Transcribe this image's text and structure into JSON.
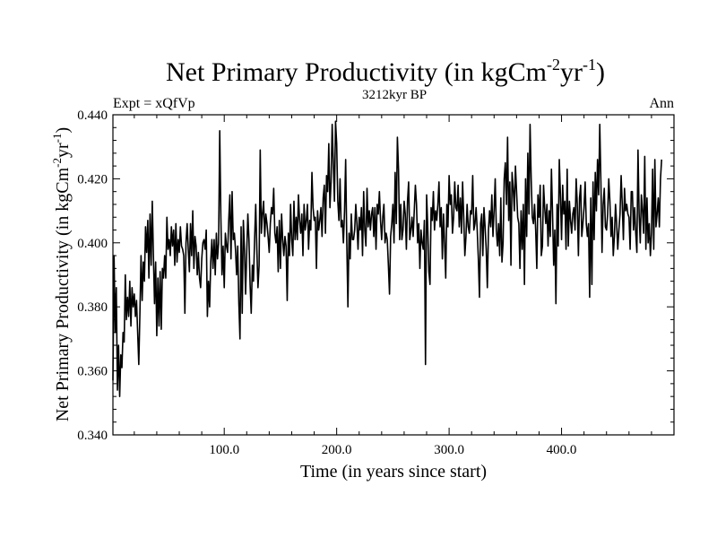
{
  "chart_data": {
    "type": "line",
    "title": {
      "main": "Net Primary Productivity (in kgCm",
      "sup1": "-2",
      "mid": "yr",
      "sup2": "-1",
      "end": ")"
    },
    "subtitle_left": "Expt = xQfVp",
    "subtitle_center": "3212kyr BP",
    "subtitle_right": "Ann",
    "xlabel": "Time (in years since start)",
    "ylabel": {
      "main": "Net Primary Productivity (in kgCm",
      "sup1": "-2",
      "mid": "yr",
      "sup2": "-1",
      "end": ")"
    },
    "xlim": [
      1,
      500
    ],
    "ylim": [
      0.34,
      0.44
    ],
    "x_ticks": [
      100,
      200,
      300,
      400
    ],
    "x_tick_labels": [
      "100.0",
      "200.0",
      "300.0",
      "400.0"
    ],
    "y_ticks": [
      0.34,
      0.36,
      0.38,
      0.4,
      0.42,
      0.44
    ],
    "y_tick_labels": [
      "0.340",
      "0.360",
      "0.380",
      "0.400",
      "0.420",
      "0.440"
    ],
    "grid": false,
    "line_color": "#000000",
    "series": [
      {
        "x_start": 1,
        "x_step": 1,
        "values": [
          0.357,
          0.396,
          0.372,
          0.386,
          0.354,
          0.368,
          0.352,
          0.365,
          0.361,
          0.372,
          0.369,
          0.39,
          0.376,
          0.383,
          0.377,
          0.388,
          0.374,
          0.386,
          0.38,
          0.384,
          0.377,
          0.382,
          0.372,
          0.362,
          0.378,
          0.396,
          0.382,
          0.394,
          0.388,
          0.405,
          0.397,
          0.407,
          0.389,
          0.409,
          0.393,
          0.413,
          0.396,
          0.381,
          0.394,
          0.371,
          0.389,
          0.374,
          0.391,
          0.373,
          0.392,
          0.389,
          0.396,
          0.389,
          0.408,
          0.398,
          0.401,
          0.396,
          0.405,
          0.399,
          0.404,
          0.393,
          0.406,
          0.394,
          0.401,
          0.397,
          0.405,
          0.399,
          0.398,
          0.396,
          0.378,
          0.4,
          0.406,
          0.398,
          0.391,
          0.406,
          0.396,
          0.41,
          0.392,
          0.402,
          0.399,
          0.39,
          0.397,
          0.389,
          0.386,
          0.395,
          0.4,
          0.401,
          0.398,
          0.404,
          0.377,
          0.388,
          0.38,
          0.394,
          0.401,
          0.392,
          0.401,
          0.39,
          0.403,
          0.395,
          0.4,
          0.435,
          0.408,
          0.39,
          0.399,
          0.386,
          0.403,
          0.399,
          0.397,
          0.407,
          0.415,
          0.395,
          0.416,
          0.401,
          0.403,
          0.398,
          0.39,
          0.399,
          0.381,
          0.37,
          0.405,
          0.378,
          0.407,
          0.398,
          0.384,
          0.397,
          0.409,
          0.401,
          0.387,
          0.378,
          0.393,
          0.388,
          0.401,
          0.412,
          0.398,
          0.386,
          0.393,
          0.429,
          0.403,
          0.409,
          0.413,
          0.402,
          0.409,
          0.406,
          0.402,
          0.397,
          0.406,
          0.411,
          0.409,
          0.417,
          0.403,
          0.4,
          0.405,
          0.391,
          0.407,
          0.392,
          0.409,
          0.401,
          0.396,
          0.402,
          0.399,
          0.382,
          0.403,
          0.396,
          0.412,
          0.401,
          0.396,
          0.413,
          0.401,
          0.408,
          0.401,
          0.415,
          0.407,
          0.403,
          0.409,
          0.396,
          0.412,
          0.404,
          0.407,
          0.412,
          0.398,
          0.407,
          0.404,
          0.422,
          0.411,
          0.407,
          0.408,
          0.392,
          0.41,
          0.404,
          0.407,
          0.411,
          0.402,
          0.414,
          0.418,
          0.403,
          0.421,
          0.416,
          0.431,
          0.411,
          0.419,
          0.437,
          0.425,
          0.413,
          0.438,
          0.431,
          0.413,
          0.407,
          0.42,
          0.405,
          0.407,
          0.4,
          0.41,
          0.426,
          0.4,
          0.38,
          0.403,
          0.395,
          0.409,
          0.401,
          0.401,
          0.404,
          0.412,
          0.406,
          0.398,
          0.408,
          0.404,
          0.411,
          0.396,
          0.416,
          0.404,
          0.399,
          0.417,
          0.405,
          0.41,
          0.404,
          0.409,
          0.411,
          0.402,
          0.411,
          0.398,
          0.412,
          0.409,
          0.416,
          0.407,
          0.401,
          0.408,
          0.412,
          0.4,
          0.403,
          0.401,
          0.393,
          0.384,
          0.402,
          0.406,
          0.412,
          0.4,
          0.422,
          0.406,
          0.433,
          0.423,
          0.401,
          0.412,
          0.401,
          0.404,
          0.413,
          0.409,
          0.398,
          0.413,
          0.419,
          0.401,
          0.404,
          0.408,
          0.402,
          0.41,
          0.418,
          0.412,
          0.4,
          0.406,
          0.392,
          0.404,
          0.4,
          0.398,
          0.407,
          0.362,
          0.415,
          0.405,
          0.391,
          0.387,
          0.411,
          0.407,
          0.416,
          0.404,
          0.41,
          0.407,
          0.412,
          0.419,
          0.405,
          0.411,
          0.395,
          0.409,
          0.4,
          0.389,
          0.412,
          0.405,
          0.421,
          0.412,
          0.415,
          0.403,
          0.408,
          0.419,
          0.411,
          0.41,
          0.418,
          0.405,
          0.414,
          0.403,
          0.419,
          0.408,
          0.396,
          0.402,
          0.412,
          0.405,
          0.403,
          0.41,
          0.409,
          0.421,
          0.404,
          0.406,
          0.411,
          0.404,
          0.395,
          0.383,
          0.406,
          0.409,
          0.396,
          0.411,
          0.405,
          0.398,
          0.386,
          0.404,
          0.41,
          0.405,
          0.415,
          0.402,
          0.41,
          0.42,
          0.404,
          0.399,
          0.406,
          0.396,
          0.414,
          0.394,
          0.4,
          0.42,
          0.425,
          0.412,
          0.433,
          0.407,
          0.419,
          0.393,
          0.422,
          0.417,
          0.41,
          0.424,
          0.416,
          0.408,
          0.406,
          0.392,
          0.41,
          0.398,
          0.412,
          0.387,
          0.42,
          0.402,
          0.428,
          0.409,
          0.437,
          0.42,
          0.408,
          0.406,
          0.412,
          0.404,
          0.392,
          0.415,
          0.408,
          0.418,
          0.396,
          0.399,
          0.418,
          0.411,
          0.406,
          0.412,
          0.399,
          0.41,
          0.402,
          0.423,
          0.409,
          0.393,
          0.404,
          0.381,
          0.412,
          0.399,
          0.426,
          0.415,
          0.401,
          0.418,
          0.409,
          0.413,
          0.398,
          0.423,
          0.399,
          0.413,
          0.407,
          0.403,
          0.409,
          0.411,
          0.404,
          0.42,
          0.412,
          0.396,
          0.414,
          0.418,
          0.402,
          0.406,
          0.411,
          0.419,
          0.406,
          0.402,
          0.406,
          0.383,
          0.414,
          0.387,
          0.419,
          0.401,
          0.422,
          0.41,
          0.426,
          0.415,
          0.437,
          0.419,
          0.397,
          0.412,
          0.417,
          0.405,
          0.404,
          0.409,
          0.42,
          0.413,
          0.402,
          0.408,
          0.396,
          0.402,
          0.412,
          0.406,
          0.398,
          0.404,
          0.409,
          0.421,
          0.412,
          0.401,
          0.417,
          0.41,
          0.412,
          0.409,
          0.408,
          0.398,
          0.416,
          0.416,
          0.404,
          0.411,
          0.403,
          0.397,
          0.429,
          0.409,
          0.4,
          0.415,
          0.41,
          0.403,
          0.427,
          0.398,
          0.414,
          0.4,
          0.406,
          0.396,
          0.403,
          0.423,
          0.398,
          0.426,
          0.405,
          0.409,
          0.414,
          0.405,
          0.42,
          0.426
        ]
      }
    ]
  }
}
